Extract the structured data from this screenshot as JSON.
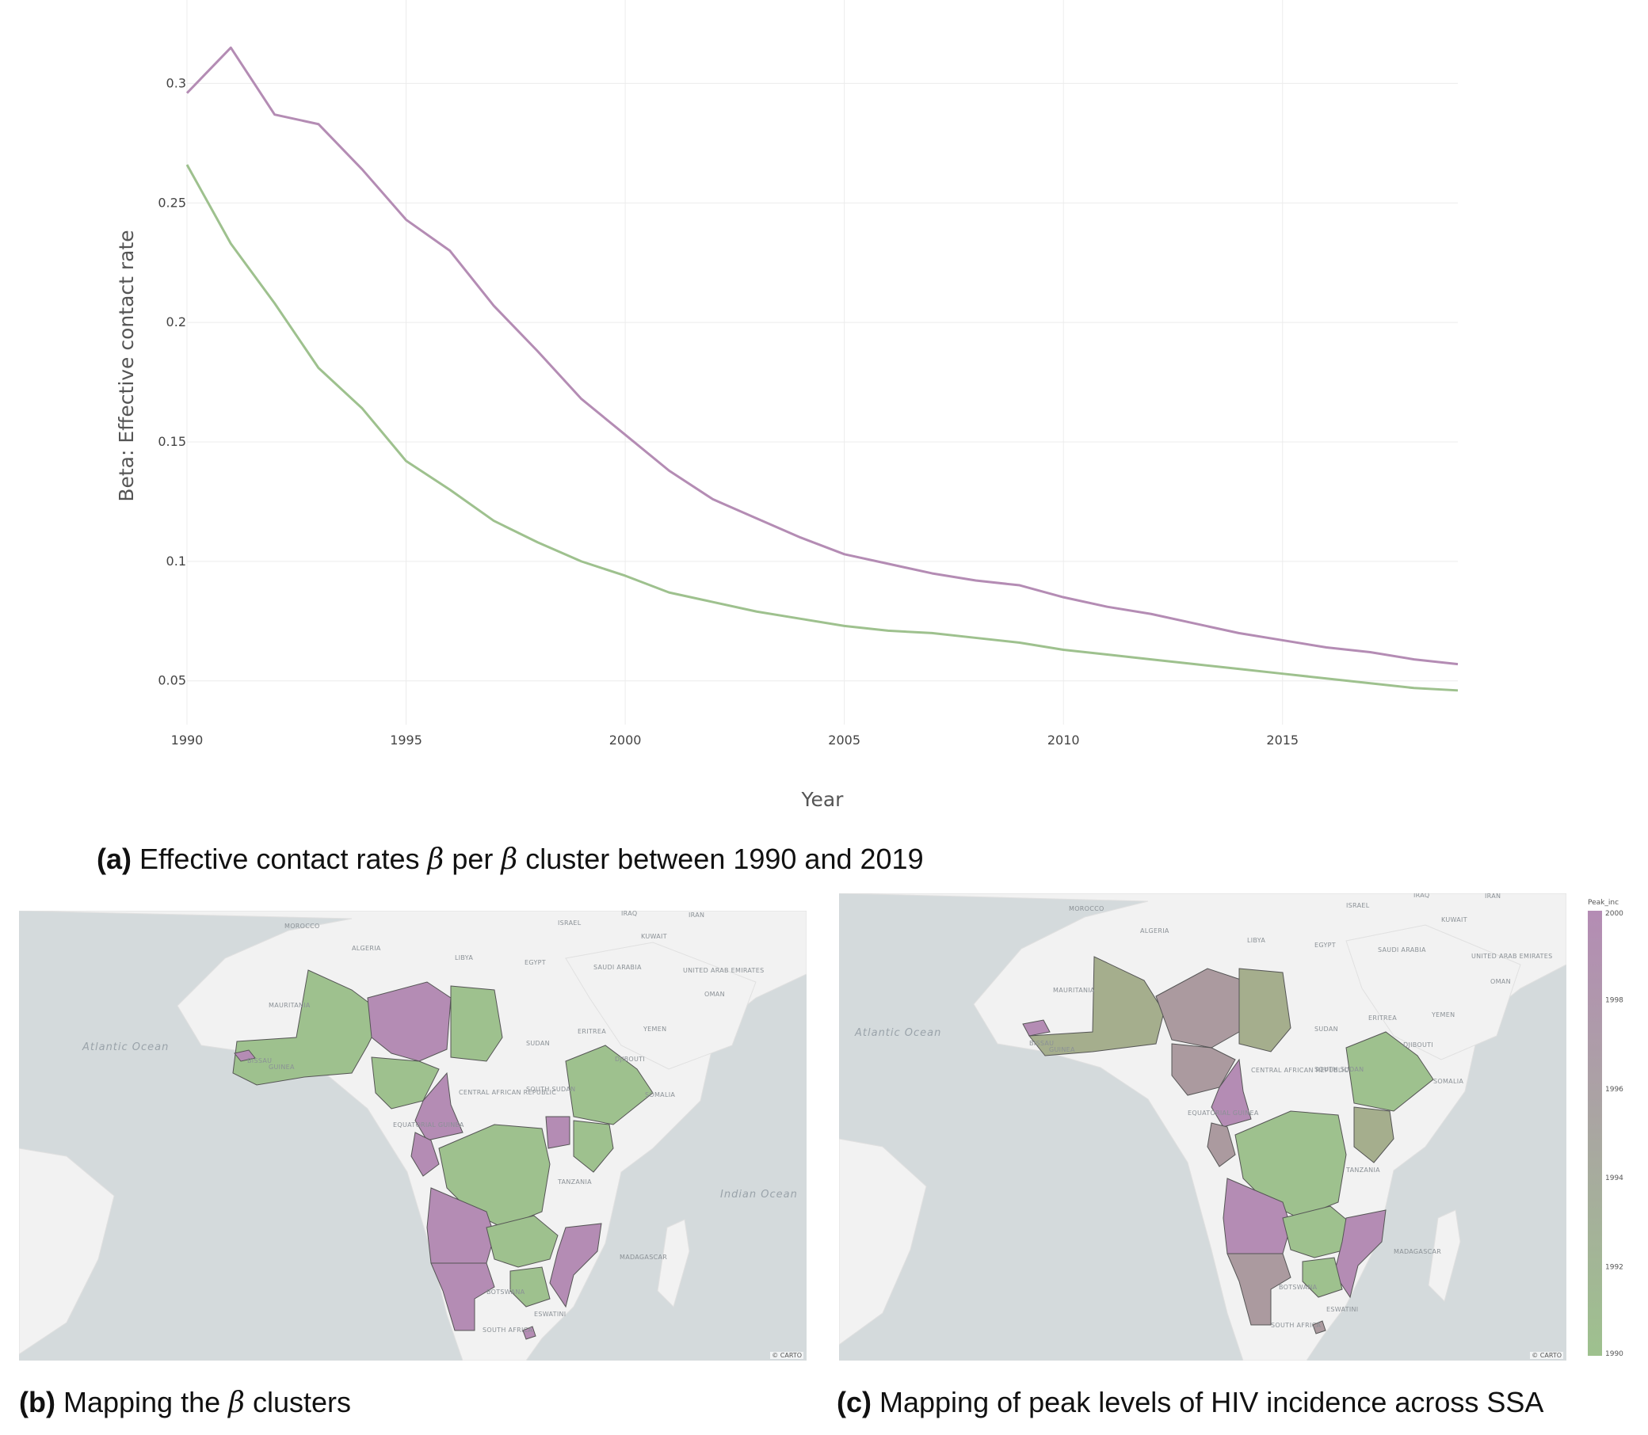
{
  "chart_data": [
    {
      "type": "line",
      "xlabel": "Year",
      "ylabel": "Beta: Effective contact rate",
      "xlim": [
        1990,
        2019
      ],
      "ylim": [
        0.035,
        0.325
      ],
      "xticks": [
        1990,
        1995,
        2000,
        2005,
        2010,
        2015
      ],
      "yticks": [
        0.05,
        0.1,
        0.15,
        0.2,
        0.25,
        0.3
      ],
      "ytick_labels": [
        "0.05",
        "0.1",
        "0.15",
        "0.2",
        "0.25",
        "0.3"
      ],
      "grid": true,
      "x": [
        1990,
        1991,
        1992,
        1993,
        1994,
        1995,
        1996,
        1997,
        1998,
        1999,
        2000,
        2001,
        2002,
        2003,
        2004,
        2005,
        2006,
        2007,
        2008,
        2009,
        2010,
        2011,
        2012,
        2013,
        2014,
        2015,
        2016,
        2017,
        2018,
        2019
      ],
      "series": [
        {
          "color": "#b48cb4",
          "values": [
            0.296,
            0.315,
            0.287,
            0.283,
            0.264,
            0.243,
            0.23,
            0.207,
            0.188,
            0.168,
            0.153,
            0.138,
            0.126,
            0.118,
            0.11,
            0.103,
            0.099,
            0.095,
            0.092,
            0.09,
            0.085,
            0.081,
            0.078,
            0.074,
            0.07,
            0.067,
            0.064,
            0.062,
            0.059,
            0.057
          ]
        },
        {
          "color": "#9ec18e",
          "values": [
            0.266,
            0.233,
            0.208,
            0.181,
            0.164,
            0.142,
            0.13,
            0.117,
            0.108,
            0.1,
            0.094,
            0.087,
            0.083,
            0.079,
            0.076,
            0.073,
            0.071,
            0.07,
            0.068,
            0.066,
            0.063,
            0.061,
            0.059,
            0.057,
            0.055,
            0.053,
            0.051,
            0.049,
            0.047,
            0.046
          ]
        }
      ]
    }
  ],
  "captions": {
    "a_prefix": "(a)",
    "a_text_1": " Effective contact rates ",
    "a_text_2": " per ",
    "a_text_3": " cluster between 1990 and 2019",
    "beta": "β",
    "b_prefix": "(b)",
    "b_text_1": " Mapping the ",
    "b_text_2": " clusters",
    "c_prefix": "(c)",
    "c_text": " Mapping of peak levels of HIV incidence across SSA"
  },
  "maps": {
    "attribution": "© CARTO",
    "colors": {
      "cluster_purple": "#b48cb4",
      "cluster_green": "#9ec18e",
      "land": "#f2f2f2",
      "water": "#d4dadc"
    },
    "labels": [
      "MOROCCO",
      "ALGERIA",
      "LIBYA",
      "EGYPT",
      "SAUDI ARABIA",
      "IRAQ",
      "IRAN",
      "KUWAIT",
      "ISRAEL",
      "UNITED ARAB EMIRATES",
      "OMAN",
      "YEMEN",
      "ERITREA",
      "SUDAN",
      "SOUTH SUDAN",
      "CENTRAL AFRICAN REPUBLIC",
      "SOMALIA",
      "TANZANIA",
      "MADAGASCAR",
      "BOTSWANA",
      "ESWATINI",
      "SOUTH AFRICA",
      "MAURITANIA",
      "GUINEA",
      "BISSAU",
      "DJIBOUTI",
      "EQUATORIAL GUINEA"
    ],
    "oceans": [
      "Atlantic Ocean",
      "Indian Ocean"
    ],
    "legend": {
      "title": "Peak_inc",
      "ticks": [
        "2000",
        "1998",
        "1996",
        "1994",
        "1992",
        "1990"
      ],
      "range": [
        1990,
        2000
      ],
      "color_high": "#b48cb4",
      "color_low": "#9ec18e"
    }
  }
}
